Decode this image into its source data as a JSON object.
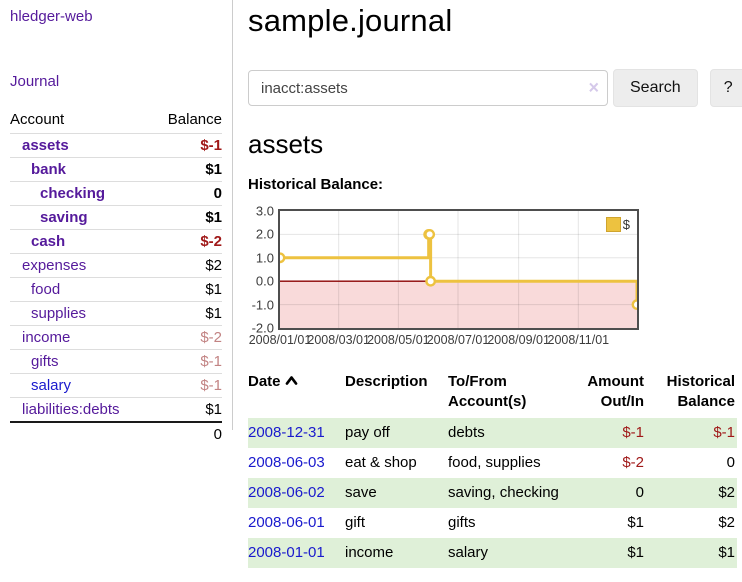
{
  "app": {
    "brand": "hledger-web",
    "nav_journal": "Journal"
  },
  "colors": {
    "link_purple": "#551a9b",
    "link_blue": "#1a1acd",
    "negative_strong": "#a01919",
    "negative_soft": "#c28383",
    "row_green": "#dff0d8",
    "series_gold": "#edc240",
    "zero_line": "#8b0000",
    "negative_region": "#f9dada"
  },
  "sidebar": {
    "columns": {
      "account": "Account",
      "balance": "Balance"
    },
    "rows": [
      {
        "account": "assets",
        "balance": "$-1",
        "depth": 0,
        "bold": true,
        "balance_style": "neg-strong"
      },
      {
        "account": "bank",
        "balance": "$1",
        "depth": 1,
        "bold": true,
        "balance_style": "pos"
      },
      {
        "account": "checking",
        "balance": "0",
        "depth": 2,
        "bold": true,
        "balance_style": "pos"
      },
      {
        "account": "saving",
        "balance": "$1",
        "depth": 2,
        "bold": true,
        "balance_style": "pos"
      },
      {
        "account": "cash",
        "balance": "$-2",
        "depth": 1,
        "bold": true,
        "balance_style": "neg-strong"
      },
      {
        "account": "expenses",
        "balance": "$2",
        "depth": 0,
        "bold": false,
        "balance_style": "pos"
      },
      {
        "account": "food",
        "balance": "$1",
        "depth": 1,
        "bold": false,
        "balance_style": "pos"
      },
      {
        "account": "supplies",
        "balance": "$1",
        "depth": 1,
        "bold": false,
        "balance_style": "pos"
      },
      {
        "account": "income",
        "balance": "$-2",
        "depth": 0,
        "bold": false,
        "balance_style": "neg-soft"
      },
      {
        "account": "gifts",
        "balance": "$-1",
        "depth": 1,
        "bold": false,
        "balance_style": "neg-soft"
      },
      {
        "account": "salary",
        "balance": "$-1",
        "depth": 1,
        "bold": false,
        "balance_style": "neg-soft",
        "link_style": "unvisited"
      },
      {
        "account": "liabilities:debts",
        "balance": "$1",
        "depth": 0,
        "bold": false,
        "balance_style": "pos"
      }
    ],
    "total": "0"
  },
  "header": {
    "title": "sample.journal"
  },
  "search": {
    "value": "inacct:assets",
    "clear_icon": "×",
    "button_label": "Search",
    "help_label": "?"
  },
  "account_page": {
    "title": "assets",
    "chart_label": "Historical Balance:"
  },
  "chart_data": {
    "type": "line",
    "title": "Historical Balance",
    "step": true,
    "series": [
      {
        "name": "$",
        "color": "#edc240",
        "points": [
          {
            "date": "2008-01-01",
            "value": 1
          },
          {
            "date": "2008-06-01",
            "value": 2
          },
          {
            "date": "2008-06-02",
            "value": 2
          },
          {
            "date": "2008-06-03",
            "value": 0
          },
          {
            "date": "2008-12-31",
            "value": -1
          }
        ]
      }
    ],
    "xrange": [
      "2008-01-01",
      "2008-12-31"
    ],
    "ylim": [
      -2,
      3
    ],
    "yticks": [
      "3.0",
      "2.0",
      "1.0",
      "0.0",
      "-1.0",
      "-2.0"
    ],
    "ytick_values": [
      3,
      2,
      1,
      0,
      -1,
      -2
    ],
    "xticks": [
      "2008/01/01",
      "2008/03/01",
      "2008/05/01",
      "2008/07/01",
      "2008/09/01",
      "2008/11/01"
    ],
    "grid": true,
    "legend": {
      "label": "$",
      "position": "top-right"
    },
    "negative_region_shaded": true
  },
  "register": {
    "headers": [
      {
        "label": "Date",
        "align": "left",
        "sort": "asc"
      },
      {
        "label": "Description",
        "align": "left"
      },
      {
        "label": "To/From Account(s)",
        "align": "left"
      },
      {
        "label": "Amount Out/In",
        "align": "right"
      },
      {
        "label": "Historical Balance",
        "align": "right"
      }
    ],
    "rows": [
      {
        "date": "2008-12-31",
        "description": "pay off",
        "accounts": "debts",
        "amount": "$-1",
        "balance": "$-1"
      },
      {
        "date": "2008-06-03",
        "description": "eat & shop",
        "accounts": "food, supplies",
        "amount": "$-2",
        "balance": "0"
      },
      {
        "date": "2008-06-02",
        "description": "save",
        "accounts": "saving, checking",
        "amount": "0",
        "balance": "$2"
      },
      {
        "date": "2008-06-01",
        "description": "gift",
        "accounts": "gifts",
        "amount": "$1",
        "balance": "$2"
      },
      {
        "date": "2008-01-01",
        "description": "income",
        "accounts": "salary",
        "amount": "$1",
        "balance": "$1"
      }
    ]
  }
}
